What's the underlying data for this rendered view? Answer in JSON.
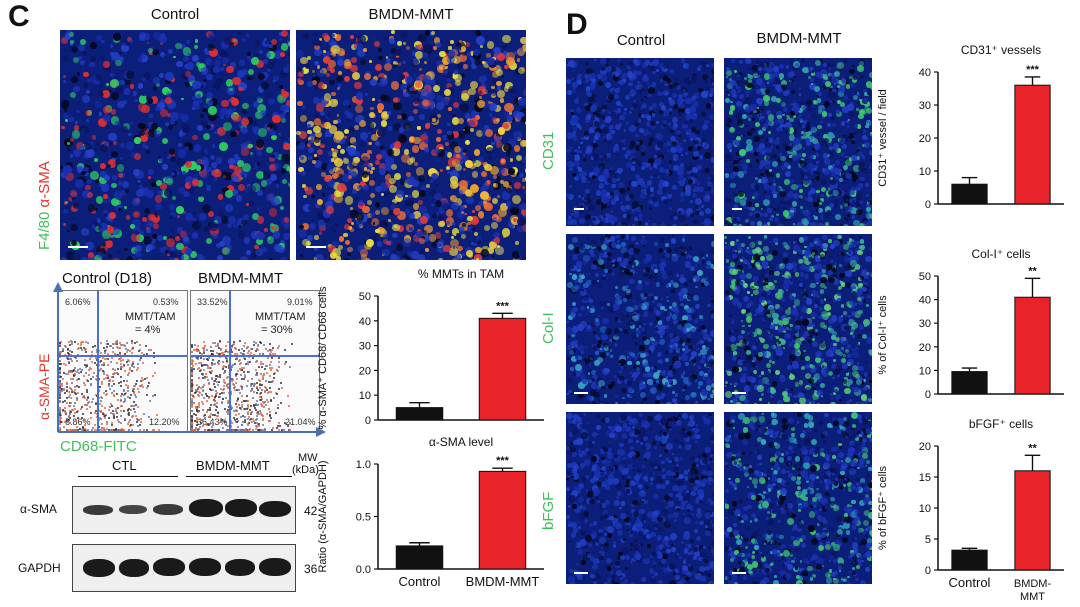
{
  "panel_c": {
    "letter": "C",
    "col_control": "Control",
    "col_bmdm": "BMDM-MMT",
    "stain_f480": "F4/80",
    "stain_asma": "α-SMA",
    "flow": {
      "title_control": "Control (D18)",
      "title_bmdm": "BMDM-MMT",
      "control_q1": "6.06%",
      "control_q2": "0.53%",
      "control_q3": "6.86%",
      "control_q4": "12.20%",
      "control_ratio_1": "MMT/TAM",
      "control_ratio_2": "= 4%",
      "bmdm_q1": "33.52%",
      "bmdm_q2": "9.01%",
      "bmdm_q3": "36.43%",
      "bmdm_q4": "21.04%",
      "bmdm_ratio_1": "MMT/TAM",
      "bmdm_ratio_2": "= 30%",
      "y_axis": "α-SMA-PE",
      "x_axis": "CD68-FITC"
    },
    "blot": {
      "group_ctl": "CTL",
      "group_bmdm": "BMDM-MMT",
      "mw_1": "MW",
      "mw_2": "(kDa)",
      "row1_label": "α-SMA",
      "row1_mw": "42",
      "row2_label": "GAPDH",
      "row2_mw": "36"
    }
  },
  "panel_d": {
    "letter": "D",
    "col_control": "Control",
    "col_bmdm": "BMDM-MMT",
    "row_cd31": "CD31",
    "row_col": "Col-I",
    "row_bfgf": "bFGF"
  },
  "chart_data": [
    {
      "type": "bar",
      "title": "% MMTs  in TAM",
      "ylabel": "% α-SMA⁺ CD68/ CD68 cells",
      "categories": [
        "Control",
        "BMDM-MMT"
      ],
      "values": [
        5,
        41
      ],
      "errors": [
        2,
        2
      ],
      "ylim": [
        0,
        50
      ],
      "yticks": [
        "0",
        "10",
        "20",
        "30",
        "40",
        "50"
      ],
      "significance": "***",
      "show_category_labels": false,
      "colors": [
        "#111111",
        "#e8232a"
      ]
    },
    {
      "type": "bar",
      "title": "α-SMA level",
      "ylabel": "Ratio (α-SMA/GAPDH)",
      "categories": [
        "Control",
        "BMDM-MMT"
      ],
      "values": [
        0.22,
        0.93
      ],
      "errors": [
        0.03,
        0.03
      ],
      "ylim": [
        0,
        1.0
      ],
      "yticks": [
        "0.0",
        "0.5",
        "1.0"
      ],
      "significance": "***",
      "show_category_labels": true,
      "colors": [
        "#111111",
        "#e8232a"
      ]
    },
    {
      "type": "bar",
      "title": "CD31⁺ vessels",
      "ylabel": "CD31⁺ vessel / field",
      "categories": [
        "Control",
        "BMDM-MMT"
      ],
      "values": [
        6,
        36
      ],
      "errors": [
        2,
        2.5
      ],
      "ylim": [
        0,
        40
      ],
      "yticks": [
        "0",
        "10",
        "20",
        "30",
        "40"
      ],
      "significance": "***",
      "show_category_labels": false,
      "colors": [
        "#111111",
        "#e8232a"
      ]
    },
    {
      "type": "bar",
      "title": "Col-I⁺ cells",
      "ylabel": "% of Col-I⁺ cells",
      "categories": [
        "Control",
        "BMDM-MMT"
      ],
      "values": [
        9.5,
        41
      ],
      "errors": [
        1.5,
        8
      ],
      "ylim": [
        0,
        50
      ],
      "yticks": [
        "0",
        "10",
        "20",
        "30",
        "40",
        "50"
      ],
      "significance": "**",
      "show_category_labels": false,
      "colors": [
        "#111111",
        "#e8232a"
      ]
    },
    {
      "type": "bar",
      "title": "bFGF⁺ cells",
      "ylabel": "% of bFGF⁺ cells",
      "categories": [
        "Control",
        "BMDM-\nMMT"
      ],
      "values": [
        3.2,
        16
      ],
      "errors": [
        0.3,
        2.5
      ],
      "ylim": [
        0,
        20
      ],
      "yticks": [
        "0",
        "5",
        "10",
        "15",
        "20"
      ],
      "significance": "**",
      "show_category_labels": true,
      "colors": [
        "#111111",
        "#e8232a"
      ]
    }
  ]
}
